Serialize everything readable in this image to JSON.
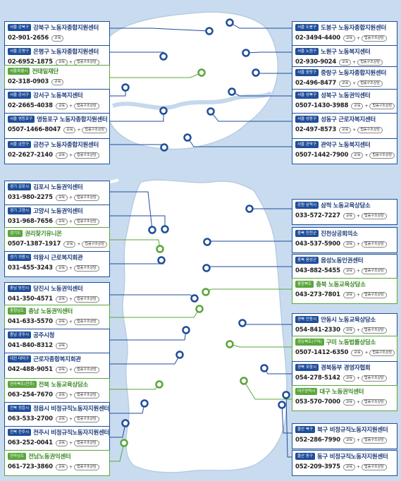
{
  "labels": {
    "edu": "교육",
    "legal": "법률구조상담",
    "plus": "+"
  },
  "seoul": [
    {
      "region": "서울 강북구",
      "name": "강북구 노동자종합지원센터",
      "phone": "02-901-2656",
      "legal": false,
      "green": false
    },
    {
      "region": "서울 은평구",
      "name": "은평구 노동자종합지원센터",
      "phone": "02-6952-1875",
      "legal": true,
      "green": false
    },
    {
      "region": "서울특별시",
      "name": "전태일재단",
      "phone": "02-318-0903",
      "legal": false,
      "green": true
    },
    {
      "region": "서울 강서구",
      "name": "강서구 노동복지센터",
      "phone": "02-2665-4038",
      "legal": true,
      "green": false
    },
    {
      "region": "서울 영등포구",
      "name": "영등포구 노동자종합지원센터",
      "phone": "0507-1466-8047",
      "legal": true,
      "green": false
    },
    {
      "region": "서울 금천구",
      "name": "금천구 노동자종합지원센터",
      "phone": "02-2627-2140",
      "legal": true,
      "green": false
    },
    {
      "region": "서울 도봉구",
      "name": "도봉구 노동자종합지원센터",
      "phone": "02-3494-4400",
      "legal": true,
      "green": false
    },
    {
      "region": "서울 노원구",
      "name": "노원구 노동복지센터",
      "phone": "02-930-9024",
      "legal": true,
      "green": false
    },
    {
      "region": "서울 중랑구",
      "name": "중랑구 노동자종합지원센터",
      "phone": "02-496-8477",
      "legal": true,
      "green": false
    },
    {
      "region": "서울 성북구",
      "name": "성북구 노동권익센터",
      "phone": "0507-1430-3988",
      "legal": true,
      "green": false
    },
    {
      "region": "서울 성동구",
      "name": "성동구 근로자복지센터",
      "phone": "02-497-8573",
      "legal": true,
      "green": false
    },
    {
      "region": "서울 관악구",
      "name": "관악구 노동복지센터",
      "phone": "0507-1442-7900",
      "legal": true,
      "green": false
    }
  ],
  "national": [
    {
      "region": "경기 김포시",
      "name": "김포시 노동권익센터",
      "phone": "031-980-2275",
      "legal": true,
      "green": false
    },
    {
      "region": "경기 고양시",
      "name": "고양시 노동권익센터",
      "phone": "031-968-7656",
      "legal": true,
      "green": false
    },
    {
      "region": "경기도",
      "name": "권리찾기유니온",
      "phone": "0507-1387-1917",
      "legal": true,
      "green": true
    },
    {
      "region": "경기 의왕시",
      "name": "의왕시 근로복지회관",
      "phone": "031-455-3243",
      "legal": true,
      "green": false
    },
    {
      "region": "충남 당진시",
      "name": "당진시 노동권익센터",
      "phone": "041-350-4571",
      "legal": true,
      "green": false
    },
    {
      "region": "충청남도",
      "name": "충남 노동권익센터",
      "phone": "041-633-5570",
      "legal": true,
      "green": true
    },
    {
      "region": "충남 공주시",
      "name": "공주시청",
      "phone": "041-840-8312",
      "legal": false,
      "green": false
    },
    {
      "region": "대전 대덕구",
      "name": "근로자종합복지회관",
      "phone": "042-488-9051",
      "legal": true,
      "green": false
    },
    {
      "region": "전라북도(전주)",
      "name": "전북 노동교육상담소",
      "phone": "063-254-7670",
      "legal": true,
      "green": true
    },
    {
      "region": "전북 정읍시",
      "name": "정읍시 비정규직노동자지원센터",
      "phone": "063-533-2700",
      "legal": true,
      "green": false
    },
    {
      "region": "전북 전주시",
      "name": "전주시 비정규직노동자지원센터",
      "phone": "063-252-0041",
      "legal": true,
      "green": false
    },
    {
      "region": "전라남도",
      "name": "전남노동권익센터",
      "phone": "061-723-3860",
      "legal": true,
      "green": true
    },
    {
      "region": "강원 삼척시",
      "name": "삼척 노동교육상담소",
      "phone": "033-572-7227",
      "legal": true,
      "green": false
    },
    {
      "region": "충북 진천군",
      "name": "진천상공회의소",
      "phone": "043-537-5900",
      "legal": true,
      "green": false
    },
    {
      "region": "충북 음성군",
      "name": "음성노동인권센터",
      "phone": "043-882-5455",
      "legal": true,
      "green": false
    },
    {
      "region": "충청북도",
      "name": "충북 노동교육상담소",
      "phone": "043-273-7801",
      "legal": true,
      "green": true
    },
    {
      "region": "경북 안동시",
      "name": "안동시 노동교육상담소",
      "phone": "054-841-2330",
      "legal": true,
      "green": false
    },
    {
      "region": "경상북도(구미)",
      "name": "구미 노동법률상담소",
      "phone": "0507-1412-6350",
      "legal": true,
      "green": true
    },
    {
      "region": "경북 포항시",
      "name": "경북동부 경영자협회",
      "phone": "054-278-5142",
      "legal": true,
      "green": false
    },
    {
      "region": "대구광역시",
      "name": "대구 노동권익센터",
      "phone": "053-570-7000",
      "legal": true,
      "green": true
    },
    {
      "region": "울산 북구",
      "name": "북구 비정규직노동자지원센터",
      "phone": "052-286-7990",
      "legal": true,
      "green": false
    },
    {
      "region": "울산 동구",
      "name": "동구 비정규직노동자지원센터",
      "phone": "052-209-3975",
      "legal": true,
      "green": false
    }
  ]
}
